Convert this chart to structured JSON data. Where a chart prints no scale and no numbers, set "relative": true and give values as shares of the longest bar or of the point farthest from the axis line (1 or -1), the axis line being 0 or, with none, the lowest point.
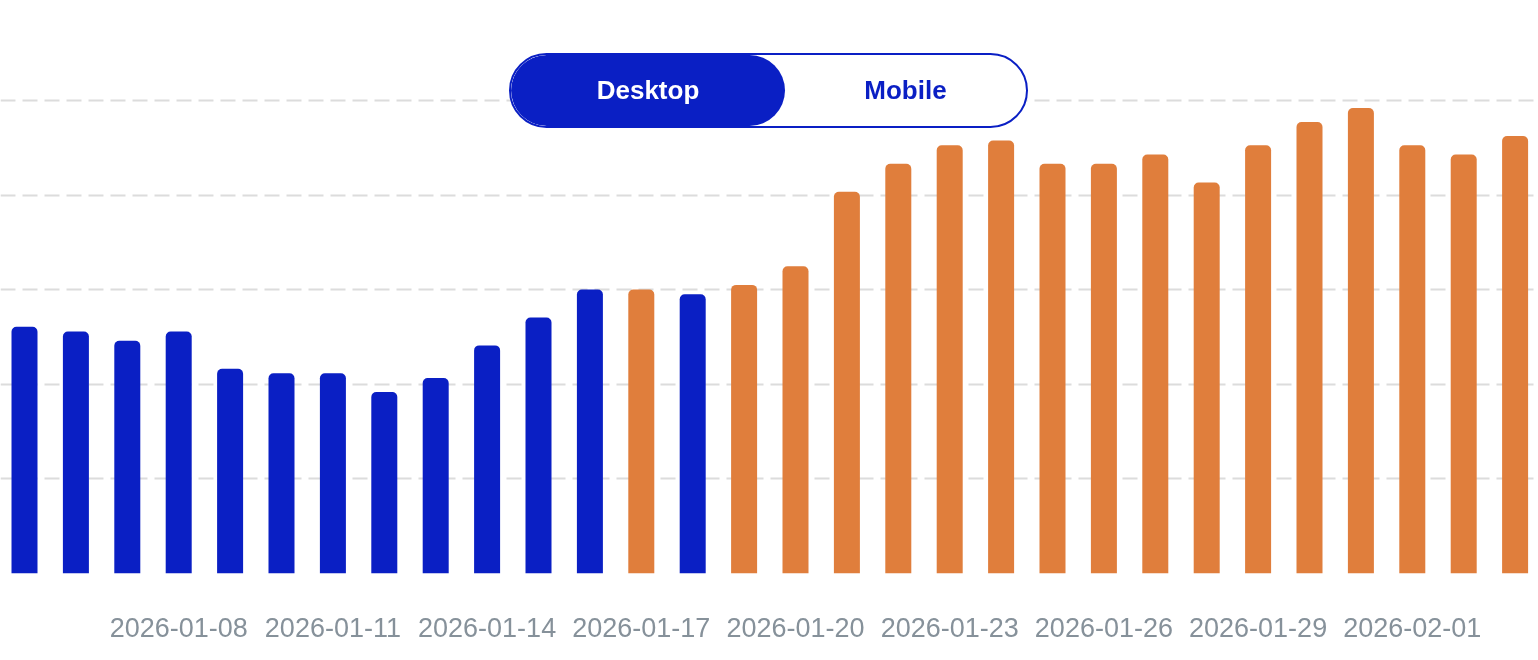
{
  "chart_data": {
    "type": "bar",
    "categories": [
      null,
      null,
      null,
      "2026-01-08",
      null,
      null,
      "2026-01-11",
      null,
      null,
      "2026-01-14",
      null,
      null,
      "2026-01-17",
      null,
      null,
      "2026-01-20",
      null,
      null,
      "2026-01-23",
      null,
      null,
      "2026-01-26",
      null,
      null,
      "2026-01-29",
      null,
      null,
      "2026-02-01",
      null,
      null
    ],
    "values": [
      0.53,
      0.52,
      0.5,
      0.52,
      0.44,
      0.43,
      0.43,
      0.39,
      0.42,
      0.49,
      0.55,
      0.61,
      0.61,
      0.6,
      0.62,
      0.66,
      0.82,
      0.88,
      0.92,
      0.93,
      0.88,
      0.88,
      0.9,
      0.84,
      0.92,
      0.97,
      1,
      0.92,
      0.9,
      0.94
    ],
    "colors": [
      "#0a1fc4",
      "#0a1fc4",
      "#0a1fc4",
      "#0a1fc4",
      "#0a1fc4",
      "#0a1fc4",
      "#0a1fc4",
      "#0a1fc4",
      "#0a1fc4",
      "#0a1fc4",
      "#0a1fc4",
      "#0a1fc4",
      "#e07e3c",
      "#0a1fc4",
      "#e07e3c",
      "#e07e3c",
      "#e07e3c",
      "#e07e3c",
      "#e07e3c",
      "#e07e3c",
      "#e07e3c",
      "#e07e3c",
      "#e07e3c",
      "#e07e3c",
      "#e07e3c",
      "#e07e3c",
      "#e07e3c",
      "#e07e3c",
      "#e07e3c",
      "#e07e3c"
    ],
    "relative": true,
    "grid": "y",
    "annotations": [
      "Desktop",
      "Mobile"
    ]
  }
}
